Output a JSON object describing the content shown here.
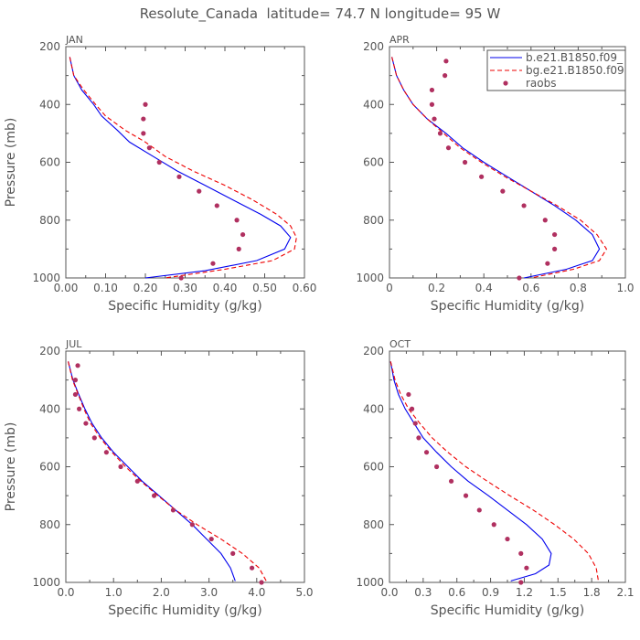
{
  "figure_title": "Resolute_Canada  latitude= 74.7 N longitude= 95 W",
  "colors": {
    "model1": "#0000ee",
    "model2": "#ee0000",
    "raobs": "#b03060",
    "axis": "#555555"
  },
  "chart_data": [
    {
      "type": "line",
      "panel_label": "JAN",
      "xlabel": "Specific Humidity (g/kg)",
      "ylabel": "Pressure (mb)",
      "xlim": [
        0,
        0.6
      ],
      "xticks": [
        0,
        0.1,
        0.2,
        0.3,
        0.4,
        0.5,
        0.6
      ],
      "xtick_labels": [
        "0.00",
        "0.10",
        "0.20",
        "0.30",
        "0.40",
        "0.50",
        "0.60"
      ],
      "ylim": [
        200,
        1000
      ],
      "yticks": [
        200,
        400,
        600,
        800,
        1000
      ],
      "y_inverted": true,
      "legend": null,
      "series": [
        {
          "name": "b.e21.B1850.f09_",
          "style": "solid",
          "points": [
            [
              0.01,
              236
            ],
            [
              0.02,
              300
            ],
            [
              0.04,
              350
            ],
            [
              0.07,
              400
            ],
            [
              0.09,
              440
            ],
            [
              0.13,
              490
            ],
            [
              0.16,
              530
            ],
            [
              0.22,
              580
            ],
            [
              0.28,
              630
            ],
            [
              0.35,
              680
            ],
            [
              0.42,
              730
            ],
            [
              0.49,
              780
            ],
            [
              0.54,
              820
            ],
            [
              0.565,
              860
            ],
            [
              0.55,
              900
            ],
            [
              0.48,
              940
            ],
            [
              0.35,
              975
            ],
            [
              0.2,
              1000
            ]
          ]
        },
        {
          "name": "bg.e21.B1850.f09",
          "style": "dashed",
          "points": [
            [
              0.01,
              236
            ],
            [
              0.02,
              300
            ],
            [
              0.045,
              350
            ],
            [
              0.075,
              400
            ],
            [
              0.1,
              440
            ],
            [
              0.15,
              490
            ],
            [
              0.2,
              530
            ],
            [
              0.25,
              580
            ],
            [
              0.32,
              630
            ],
            [
              0.4,
              680
            ],
            [
              0.47,
              730
            ],
            [
              0.53,
              780
            ],
            [
              0.565,
              820
            ],
            [
              0.58,
              860
            ],
            [
              0.575,
              900
            ],
            [
              0.52,
              940
            ],
            [
              0.4,
              970
            ],
            [
              0.25,
              1000
            ]
          ]
        },
        {
          "name": "raobs",
          "style": "points",
          "points": [
            [
              0.2,
              400
            ],
            [
              0.195,
              450
            ],
            [
              0.195,
              500
            ],
            [
              0.21,
              550
            ],
            [
              0.235,
              600
            ],
            [
              0.285,
              650
            ],
            [
              0.335,
              700
            ],
            [
              0.38,
              750
            ],
            [
              0.43,
              800
            ],
            [
              0.445,
              850
            ],
            [
              0.435,
              900
            ],
            [
              0.37,
              950
            ],
            [
              0.29,
              1000
            ]
          ]
        }
      ]
    },
    {
      "type": "line",
      "panel_label": "APR",
      "xlabel": "Specific Humidity (g/kg)",
      "ylabel": "",
      "xlim": [
        0,
        1.0
      ],
      "xticks": [
        0,
        0.2,
        0.4,
        0.6,
        0.8,
        1.0
      ],
      "xtick_labels": [
        "0",
        "0.2",
        "0.4",
        "0.6",
        "0.8",
        "1.0"
      ],
      "ylim": [
        200,
        1000
      ],
      "yticks": [
        200,
        400,
        600,
        800,
        1000
      ],
      "y_inverted": true,
      "legend": [
        "b.e21.B1850.f09_",
        "bg.e21.B1850.f09",
        "raobs"
      ],
      "series": [
        {
          "name": "b.e21.B1850.f09_",
          "style": "solid",
          "points": [
            [
              0.01,
              236
            ],
            [
              0.03,
              300
            ],
            [
              0.06,
              350
            ],
            [
              0.1,
              400
            ],
            [
              0.16,
              450
            ],
            [
              0.24,
              500
            ],
            [
              0.31,
              550
            ],
            [
              0.4,
              600
            ],
            [
              0.5,
              650
            ],
            [
              0.6,
              700
            ],
            [
              0.7,
              750
            ],
            [
              0.79,
              800
            ],
            [
              0.86,
              850
            ],
            [
              0.89,
              900
            ],
            [
              0.86,
              940
            ],
            [
              0.75,
              970
            ],
            [
              0.57,
              1000
            ]
          ]
        },
        {
          "name": "bg.e21.B1850.f09",
          "style": "dashed",
          "points": [
            [
              0.01,
              236
            ],
            [
              0.03,
              300
            ],
            [
              0.06,
              350
            ],
            [
              0.1,
              400
            ],
            [
              0.16,
              450
            ],
            [
              0.23,
              500
            ],
            [
              0.3,
              550
            ],
            [
              0.39,
              600
            ],
            [
              0.49,
              650
            ],
            [
              0.6,
              700
            ],
            [
              0.71,
              750
            ],
            [
              0.81,
              800
            ],
            [
              0.88,
              850
            ],
            [
              0.92,
              900
            ],
            [
              0.89,
              940
            ],
            [
              0.78,
              970
            ],
            [
              0.6,
              1000
            ]
          ]
        },
        {
          "name": "raobs",
          "style": "points",
          "points": [
            [
              0.24,
              250
            ],
            [
              0.235,
              300
            ],
            [
              0.18,
              350
            ],
            [
              0.18,
              400
            ],
            [
              0.19,
              450
            ],
            [
              0.215,
              500
            ],
            [
              0.25,
              550
            ],
            [
              0.32,
              600
            ],
            [
              0.39,
              650
            ],
            [
              0.48,
              700
            ],
            [
              0.57,
              750
            ],
            [
              0.66,
              800
            ],
            [
              0.7,
              850
            ],
            [
              0.7,
              900
            ],
            [
              0.67,
              950
            ],
            [
              0.55,
              1000
            ]
          ]
        }
      ]
    },
    {
      "type": "line",
      "panel_label": "JUL",
      "xlabel": "Specific Humidity (g/kg)",
      "ylabel": "Pressure (mb)",
      "xlim": [
        0,
        5.0
      ],
      "xticks": [
        0,
        1,
        2,
        3,
        4,
        5
      ],
      "xtick_labels": [
        "0.0",
        "1.0",
        "2.0",
        "3.0",
        "4.0",
        "5.0"
      ],
      "ylim": [
        200,
        1000
      ],
      "yticks": [
        200,
        400,
        600,
        800,
        1000
      ],
      "y_inverted": true,
      "legend": null,
      "series": [
        {
          "name": "b.e21.B1850.f09_",
          "style": "solid",
          "points": [
            [
              0.05,
              236
            ],
            [
              0.15,
              300
            ],
            [
              0.27,
              350
            ],
            [
              0.4,
              400
            ],
            [
              0.55,
              450
            ],
            [
              0.75,
              500
            ],
            [
              1.0,
              550
            ],
            [
              1.3,
              600
            ],
            [
              1.6,
              650
            ],
            [
              1.95,
              700
            ],
            [
              2.3,
              750
            ],
            [
              2.65,
              800
            ],
            [
              2.95,
              850
            ],
            [
              3.25,
              900
            ],
            [
              3.45,
              950
            ],
            [
              3.55,
              995
            ]
          ]
        },
        {
          "name": "bg.e21.B1850.f09",
          "style": "dashed",
          "points": [
            [
              0.05,
              236
            ],
            [
              0.14,
              300
            ],
            [
              0.26,
              350
            ],
            [
              0.38,
              400
            ],
            [
              0.52,
              450
            ],
            [
              0.72,
              500
            ],
            [
              0.97,
              550
            ],
            [
              1.25,
              600
            ],
            [
              1.57,
              650
            ],
            [
              1.93,
              700
            ],
            [
              2.3,
              750
            ],
            [
              2.75,
              800
            ],
            [
              3.25,
              850
            ],
            [
              3.7,
              900
            ],
            [
              4.05,
              950
            ],
            [
              4.2,
              995
            ]
          ]
        },
        {
          "name": "raobs",
          "style": "points",
          "points": [
            [
              0.25,
              250
            ],
            [
              0.2,
              300
            ],
            [
              0.2,
              350
            ],
            [
              0.28,
              400
            ],
            [
              0.42,
              450
            ],
            [
              0.6,
              500
            ],
            [
              0.85,
              550
            ],
            [
              1.15,
              600
            ],
            [
              1.5,
              650
            ],
            [
              1.85,
              700
            ],
            [
              2.25,
              750
            ],
            [
              2.65,
              800
            ],
            [
              3.05,
              850
            ],
            [
              3.5,
              900
            ],
            [
              3.9,
              950
            ],
            [
              4.1,
              1000
            ]
          ]
        }
      ]
    },
    {
      "type": "line",
      "panel_label": "OCT",
      "xlabel": "Specific Humidity (g/kg)",
      "ylabel": "",
      "xlim": [
        0,
        2.1
      ],
      "xticks": [
        0,
        0.3,
        0.6,
        0.9,
        1.2,
        1.5,
        1.8,
        2.1
      ],
      "xtick_labels": [
        "0.0",
        "0.3",
        "0.6",
        "0.9",
        "1.2",
        "1.5",
        "1.8",
        "2.1"
      ],
      "ylim": [
        200,
        1000
      ],
      "yticks": [
        200,
        400,
        600,
        800,
        1000
      ],
      "y_inverted": true,
      "legend": null,
      "series": [
        {
          "name": "b.e21.B1850.f09_",
          "style": "solid",
          "points": [
            [
              0.01,
              236
            ],
            [
              0.04,
              300
            ],
            [
              0.08,
              350
            ],
            [
              0.14,
              400
            ],
            [
              0.22,
              450
            ],
            [
              0.3,
              500
            ],
            [
              0.42,
              550
            ],
            [
              0.55,
              600
            ],
            [
              0.7,
              650
            ],
            [
              0.88,
              700
            ],
            [
              1.05,
              750
            ],
            [
              1.22,
              800
            ],
            [
              1.36,
              850
            ],
            [
              1.44,
              900
            ],
            [
              1.42,
              940
            ],
            [
              1.3,
              970
            ],
            [
              1.08,
              995
            ]
          ]
        },
        {
          "name": "bg.e21.B1850.f09",
          "style": "dashed",
          "points": [
            [
              0.01,
              236
            ],
            [
              0.05,
              300
            ],
            [
              0.1,
              350
            ],
            [
              0.17,
              400
            ],
            [
              0.27,
              450
            ],
            [
              0.38,
              500
            ],
            [
              0.52,
              550
            ],
            [
              0.68,
              600
            ],
            [
              0.87,
              650
            ],
            [
              1.07,
              700
            ],
            [
              1.28,
              750
            ],
            [
              1.47,
              800
            ],
            [
              1.64,
              850
            ],
            [
              1.77,
              900
            ],
            [
              1.84,
              950
            ],
            [
              1.86,
              995
            ]
          ]
        },
        {
          "name": "raobs",
          "style": "points",
          "points": [
            [
              0.17,
              350
            ],
            [
              0.2,
              400
            ],
            [
              0.23,
              450
            ],
            [
              0.26,
              500
            ],
            [
              0.33,
              550
            ],
            [
              0.42,
              600
            ],
            [
              0.55,
              650
            ],
            [
              0.68,
              700
            ],
            [
              0.8,
              750
            ],
            [
              0.93,
              800
            ],
            [
              1.05,
              850
            ],
            [
              1.17,
              900
            ],
            [
              1.22,
              950
            ],
            [
              1.17,
              1000
            ]
          ]
        }
      ]
    }
  ]
}
